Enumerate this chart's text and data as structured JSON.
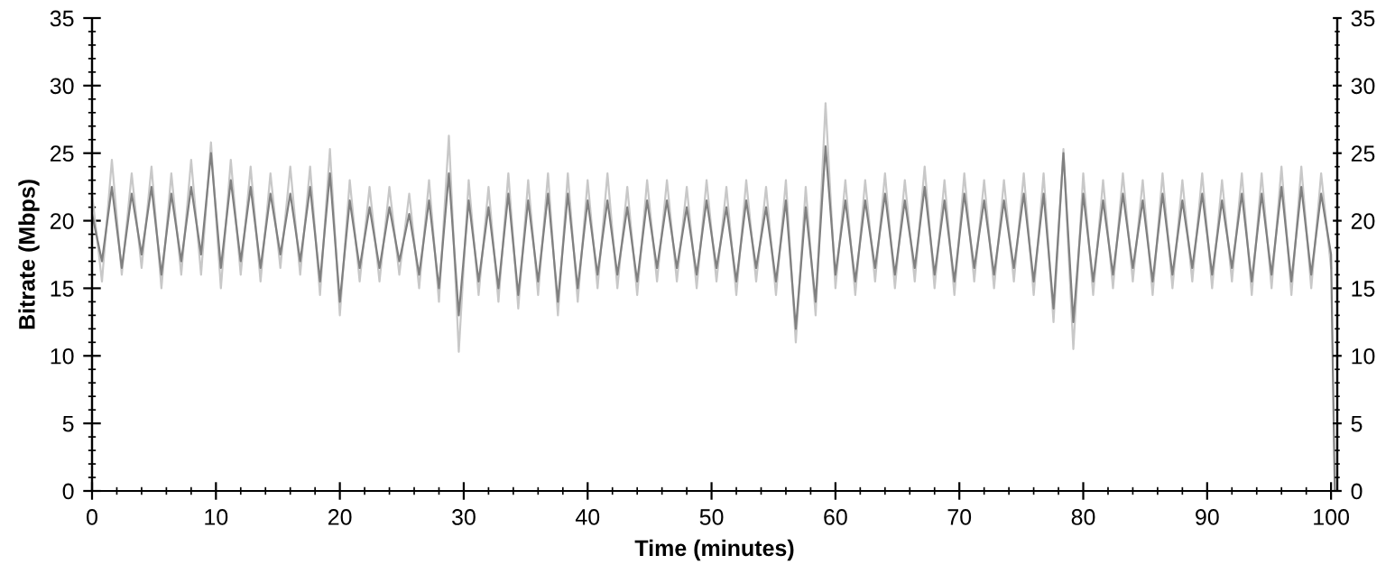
{
  "chart_data": {
    "type": "line",
    "xlabel": "Time (minutes)",
    "ylabel": "Bitrate (Mbps)",
    "xlim": [
      0,
      100.5
    ],
    "xticks": [
      0,
      10,
      20,
      30,
      40,
      50,
      60,
      70,
      80,
      90,
      100
    ],
    "ylim": [
      0,
      35
    ],
    "yticks": [
      0,
      5,
      10,
      15,
      20,
      25,
      30,
      35
    ],
    "y2lim": [
      0,
      35
    ],
    "y2ticks": [
      0,
      5,
      10,
      15,
      20,
      25,
      30,
      35
    ],
    "grid": false,
    "legend": false,
    "marker": "none",
    "line_style": "solid",
    "series": [
      {
        "color": "#c8c8c8",
        "x": [
          0,
          0.8,
          1.6,
          2.4,
          3.2,
          4.0,
          4.8,
          5.6,
          6.4,
          7.2,
          8.0,
          8.8,
          9.6,
          10.4,
          11.2,
          12.0,
          12.8,
          13.6,
          14.4,
          15.2,
          16.0,
          16.8,
          17.6,
          18.4,
          19.2,
          20.0,
          20.8,
          21.6,
          22.4,
          23.2,
          24.0,
          24.8,
          25.6,
          26.4,
          27.2,
          28.0,
          28.8,
          29.6,
          30.4,
          31.2,
          32.0,
          32.8,
          33.6,
          34.4,
          35.2,
          36.0,
          36.8,
          37.6,
          38.4,
          39.2,
          40.0,
          40.8,
          41.6,
          42.4,
          43.2,
          44.0,
          44.8,
          45.6,
          46.4,
          47.2,
          48.0,
          48.8,
          49.6,
          50.4,
          51.2,
          52.0,
          52.8,
          53.6,
          54.4,
          55.2,
          56.0,
          56.8,
          57.6,
          58.4,
          59.2,
          60.0,
          60.8,
          61.6,
          62.4,
          63.2,
          64.0,
          64.8,
          65.6,
          66.4,
          67.2,
          68.0,
          68.8,
          69.6,
          70.4,
          71.2,
          72.0,
          72.8,
          73.6,
          74.4,
          75.2,
          76.0,
          76.8,
          77.6,
          78.4,
          79.2,
          80.0,
          80.8,
          81.6,
          82.4,
          83.2,
          84.0,
          84.8,
          85.6,
          86.4,
          87.2,
          88.0,
          88.8,
          89.6,
          90.4,
          91.2,
          92.0,
          92.8,
          93.6,
          94.4,
          95.2,
          96.0,
          96.8,
          97.6,
          98.4,
          99.2,
          100.0
        ],
        "values": [
          22,
          15.5,
          24.5,
          16,
          23.5,
          16.5,
          24,
          15,
          23.5,
          16,
          24.5,
          16,
          25.8,
          15,
          24.5,
          16,
          24,
          15.5,
          23.5,
          16.5,
          24,
          16,
          24,
          14.5,
          25.3,
          13,
          23,
          15.5,
          22.5,
          15.5,
          22.5,
          16,
          22,
          15,
          23,
          14,
          26.3,
          10.3,
          23,
          14.5,
          22.5,
          14,
          23.5,
          13.5,
          23,
          14.5,
          23.5,
          13,
          23.5,
          14,
          23,
          15,
          23.5,
          15,
          22.5,
          14.5,
          23,
          15.5,
          23,
          15.5,
          22.5,
          15,
          23,
          15.5,
          22.5,
          14.5,
          23,
          15.5,
          22.5,
          14.5,
          23,
          11,
          22.5,
          13,
          28.7,
          15,
          23,
          14.5,
          23,
          15.5,
          23.5,
          15,
          23,
          15.5,
          24,
          15,
          23,
          14.5,
          23.5,
          15.5,
          23,
          15,
          23,
          15.5,
          23.5,
          14.5,
          23.5,
          12.5,
          25.3,
          10.5,
          23.5,
          14.5,
          23,
          15,
          23.5,
          15.5,
          23,
          14.5,
          23.5,
          15,
          23,
          15.5,
          23.5,
          15,
          23,
          15.5,
          23.5,
          14.5,
          23.5,
          15,
          24,
          14.5,
          24,
          15,
          23.5,
          16.5
        ]
      },
      {
        "color": "#808080",
        "x": [
          0,
          0.8,
          1.6,
          2.4,
          3.2,
          4.0,
          4.8,
          5.6,
          6.4,
          7.2,
          8.0,
          8.8,
          9.6,
          10.4,
          11.2,
          12.0,
          12.8,
          13.6,
          14.4,
          15.2,
          16.0,
          16.8,
          17.6,
          18.4,
          19.2,
          20.0,
          20.8,
          21.6,
          22.4,
          23.2,
          24.0,
          24.8,
          25.6,
          26.4,
          27.2,
          28.0,
          28.8,
          29.6,
          30.4,
          31.2,
          32.0,
          32.8,
          33.6,
          34.4,
          35.2,
          36.0,
          36.8,
          37.6,
          38.4,
          39.2,
          40.0,
          40.8,
          41.6,
          42.4,
          43.2,
          44.0,
          44.8,
          45.6,
          46.4,
          47.2,
          48.0,
          48.8,
          49.6,
          50.4,
          51.2,
          52.0,
          52.8,
          53.6,
          54.4,
          55.2,
          56.0,
          56.8,
          57.6,
          58.4,
          59.2,
          60.0,
          60.8,
          61.6,
          62.4,
          63.2,
          64.0,
          64.8,
          65.6,
          66.4,
          67.2,
          68.0,
          68.8,
          69.6,
          70.4,
          71.2,
          72.0,
          72.8,
          73.6,
          74.4,
          75.2,
          76.0,
          76.8,
          77.6,
          78.4,
          79.2,
          80.0,
          80.8,
          81.6,
          82.4,
          83.2,
          84.0,
          84.8,
          85.6,
          86.4,
          87.2,
          88.0,
          88.8,
          89.6,
          90.4,
          91.2,
          92.0,
          92.8,
          93.6,
          94.4,
          95.2,
          96.0,
          96.8,
          97.6,
          98.4,
          99.2,
          100.0,
          100.3
        ],
        "values": [
          20.5,
          17,
          22.5,
          16.5,
          22,
          17.5,
          22.5,
          16,
          22,
          17,
          22.5,
          17.5,
          25,
          16.5,
          23,
          17,
          22.5,
          16.5,
          22,
          17.5,
          22,
          17,
          22.5,
          15.5,
          23.5,
          14,
          21.5,
          16.5,
          21,
          16.5,
          21,
          17,
          20.5,
          16,
          21.5,
          15,
          23.5,
          13,
          21.5,
          15.5,
          21,
          15,
          22,
          14.5,
          21.5,
          15.5,
          22,
          14,
          22,
          15,
          21.5,
          16,
          21.5,
          16,
          21,
          15.5,
          21.5,
          16.5,
          21.5,
          16.5,
          21,
          16,
          21.5,
          16.5,
          21,
          15.5,
          21.5,
          16.5,
          21,
          15.5,
          21.5,
          12,
          21,
          14,
          25.5,
          16,
          21.5,
          15.5,
          21.5,
          16.5,
          22,
          16,
          21.5,
          16.5,
          22.5,
          16,
          21.5,
          15.5,
          22,
          16.5,
          21.5,
          16,
          21.5,
          16.5,
          22,
          15.5,
          22,
          13.5,
          25,
          12.5,
          22,
          15.5,
          21.5,
          16,
          22,
          16.5,
          21.5,
          15.5,
          22,
          16,
          21.5,
          16.5,
          22,
          16,
          21.5,
          16.5,
          22,
          15.5,
          22,
          16,
          22.5,
          15.5,
          22.5,
          16,
          22,
          17.5,
          0
        ]
      }
    ]
  }
}
